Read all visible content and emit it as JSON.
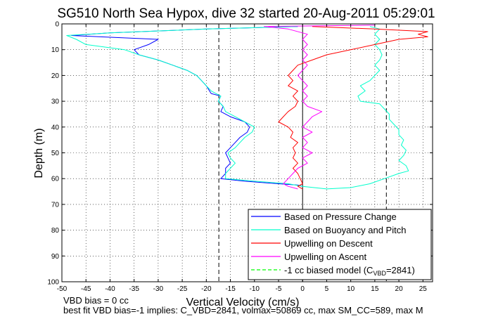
{
  "chart_data": {
    "type": "line",
    "title": "SG510 North Sea Hypox, dive 32 started 20-Aug-2011 05:29:01",
    "xlabel": "Vertical Velocity (cm/s)",
    "ylabel": "Depth (m)",
    "xlim": [
      -50,
      27
    ],
    "ylim": [
      0,
      100
    ],
    "y_reversed": true,
    "grid": true,
    "x_ticks": [
      -50,
      -45,
      -40,
      -35,
      -30,
      -25,
      -20,
      -15,
      -10,
      -5,
      0,
      5,
      10,
      15,
      20,
      25
    ],
    "y_ticks": [
      0,
      10,
      20,
      30,
      40,
      50,
      60,
      70,
      80,
      90,
      100
    ],
    "legend_position": "bottom-right",
    "reference_lines_x": [
      -17.4,
      17.4
    ],
    "zero_line_x": 0,
    "series": [
      {
        "name": "Based on Pressure Change",
        "color": "#0000ff",
        "points": [
          [
            -1,
            1
          ],
          [
            -20,
            2
          ],
          [
            -40,
            3.5
          ],
          [
            -48,
            4.5
          ],
          [
            -42,
            5
          ],
          [
            -30,
            6
          ],
          [
            -32,
            8
          ],
          [
            -35,
            10
          ],
          [
            -34,
            12
          ],
          [
            -30,
            14
          ],
          [
            -27,
            16
          ],
          [
            -24,
            18
          ],
          [
            -22,
            20
          ],
          [
            -21,
            22
          ],
          [
            -20,
            24
          ],
          [
            -19,
            27
          ],
          [
            -17,
            28
          ],
          [
            -17.5,
            30
          ],
          [
            -16.5,
            32
          ],
          [
            -17,
            34
          ],
          [
            -15,
            36
          ],
          [
            -12,
            38
          ],
          [
            -11,
            40
          ],
          [
            -11.5,
            42
          ],
          [
            -13,
            44
          ],
          [
            -14,
            46
          ],
          [
            -15,
            48
          ],
          [
            -16,
            50
          ],
          [
            -15.5,
            52
          ],
          [
            -15,
            54
          ],
          [
            -16,
            56
          ],
          [
            -16,
            58
          ],
          [
            -17,
            60
          ],
          [
            -12,
            61
          ],
          [
            -5,
            62
          ],
          [
            -1,
            62.5
          ],
          [
            0,
            63
          ]
        ]
      },
      {
        "name": "Based on Buoyancy and Pitch",
        "color": "#00ffcc",
        "points": [
          [
            -1,
            1
          ],
          [
            -20,
            2
          ],
          [
            -40,
            3.5
          ],
          [
            -49,
            4.5
          ],
          [
            -47,
            6
          ],
          [
            -45,
            8
          ],
          [
            -37,
            10
          ],
          [
            -34,
            12
          ],
          [
            -30,
            14
          ],
          [
            -27,
            16
          ],
          [
            -24,
            18
          ],
          [
            -22,
            20
          ],
          [
            -21,
            22
          ],
          [
            -20,
            24
          ],
          [
            -19,
            26
          ],
          [
            -17,
            28
          ],
          [
            -17.5,
            30
          ],
          [
            -16.5,
            32
          ],
          [
            -16,
            34
          ],
          [
            -14,
            36
          ],
          [
            -12,
            38
          ],
          [
            -10,
            40
          ],
          [
            -10.5,
            42
          ],
          [
            -12,
            44
          ],
          [
            -13,
            46
          ],
          [
            -14,
            48
          ],
          [
            -15.5,
            50
          ],
          [
            -15,
            52
          ],
          [
            -14,
            54
          ],
          [
            -15,
            56
          ],
          [
            -16,
            58
          ],
          [
            -16,
            60
          ],
          [
            -10,
            61
          ],
          [
            -3,
            62
          ],
          [
            0,
            63
          ],
          [
            5,
            64
          ],
          [
            10,
            63.5
          ],
          [
            14,
            62
          ],
          [
            17,
            60
          ],
          [
            20,
            58
          ],
          [
            22,
            57
          ],
          [
            21.5,
            55
          ],
          [
            20,
            53
          ],
          [
            21,
            51
          ],
          [
            21.5,
            49
          ],
          [
            20.5,
            47
          ],
          [
            21,
            45
          ],
          [
            20,
            43
          ],
          [
            20,
            41
          ],
          [
            19,
            39
          ],
          [
            18,
            37
          ],
          [
            18,
            35
          ],
          [
            17,
            33
          ],
          [
            16,
            31
          ],
          [
            12,
            30
          ],
          [
            11.5,
            28
          ],
          [
            13,
            26
          ],
          [
            12,
            24
          ],
          [
            14,
            22
          ],
          [
            15,
            20
          ],
          [
            16,
            18
          ],
          [
            15,
            16
          ],
          [
            16,
            14
          ],
          [
            16.5,
            12
          ],
          [
            16,
            10
          ],
          [
            15,
            8
          ],
          [
            16,
            6
          ],
          [
            15,
            4
          ],
          [
            16,
            2
          ],
          [
            14,
            1
          ]
        ]
      },
      {
        "name": "Upwelling on Descent",
        "color": "#ff0000",
        "points": [
          [
            2,
            1
          ],
          [
            15,
            2
          ],
          [
            26,
            3
          ],
          [
            24,
            4
          ],
          [
            26,
            5
          ],
          [
            20,
            6
          ],
          [
            15,
            8
          ],
          [
            10,
            10
          ],
          [
            5,
            12
          ],
          [
            2,
            14
          ],
          [
            -1,
            16
          ],
          [
            -2,
            18
          ],
          [
            -3,
            20
          ],
          [
            -2,
            22
          ],
          [
            -3,
            24
          ],
          [
            -1,
            26
          ],
          [
            -2,
            28
          ],
          [
            -1,
            30
          ],
          [
            -1.5,
            32
          ],
          [
            -3,
            34
          ],
          [
            -4,
            36
          ],
          [
            -5,
            38
          ],
          [
            -3,
            40
          ],
          [
            -2,
            42
          ],
          [
            -2.5,
            44
          ],
          [
            -1,
            46
          ],
          [
            -2,
            48
          ],
          [
            -1.5,
            50
          ],
          [
            -2,
            52
          ],
          [
            -1,
            54
          ],
          [
            -2,
            56
          ],
          [
            -1,
            58
          ],
          [
            -0.5,
            60
          ],
          [
            0,
            62
          ],
          [
            -1,
            63
          ],
          [
            0,
            64
          ]
        ]
      },
      {
        "name": "Upwelling on Ascent",
        "color": "#ff00ff",
        "points": [
          [
            -1,
            64
          ],
          [
            -3,
            63
          ],
          [
            -4,
            62
          ],
          [
            -3,
            60
          ],
          [
            -2,
            58
          ],
          [
            -1,
            56
          ],
          [
            1,
            54
          ],
          [
            0,
            52
          ],
          [
            2,
            50
          ],
          [
            0,
            48
          ],
          [
            1,
            46
          ],
          [
            0,
            44
          ],
          [
            2,
            42
          ],
          [
            0,
            40
          ],
          [
            1,
            38
          ],
          [
            2,
            36
          ],
          [
            4,
            34
          ],
          [
            1,
            32
          ],
          [
            0,
            30
          ],
          [
            1,
            28
          ],
          [
            0,
            26
          ],
          [
            1,
            24
          ],
          [
            0,
            22
          ],
          [
            -1,
            20
          ],
          [
            0,
            18
          ],
          [
            1,
            16
          ],
          [
            0,
            14
          ],
          [
            1,
            12
          ],
          [
            0,
            10
          ],
          [
            1,
            8
          ],
          [
            0,
            6
          ],
          [
            1,
            4
          ],
          [
            -3,
            2
          ],
          [
            -8,
            1
          ],
          [
            15,
            0.5
          ]
        ]
      },
      {
        "name": "-1 cc biased model (C_VBD=2841)",
        "color": "#00ff00",
        "dashed": true,
        "points": []
      }
    ]
  },
  "legend": {
    "entries": [
      {
        "text": "Based on Pressure Change",
        "color": "#0000ff",
        "dashed": false
      },
      {
        "text": "Based on Buoyancy and Pitch",
        "color": "#00ffcc",
        "dashed": false
      },
      {
        "text": "Upwelling on Descent",
        "color": "#ff0000",
        "dashed": false
      },
      {
        "text": "Upwelling on Ascent",
        "color": "#ff00ff",
        "dashed": false
      },
      {
        "text": "-1 cc biased model (C",
        "sub": "VBD",
        "tail": "=2841)",
        "color": "#00ff00",
        "dashed": true
      }
    ]
  },
  "notes": {
    "vbd_bias": "VBD bias = 0 cc",
    "best_fit": "best fit VBD bias=-1 implies: C_VBD=2841, volmax=50869 cc, max SM_CC=589, max M"
  }
}
